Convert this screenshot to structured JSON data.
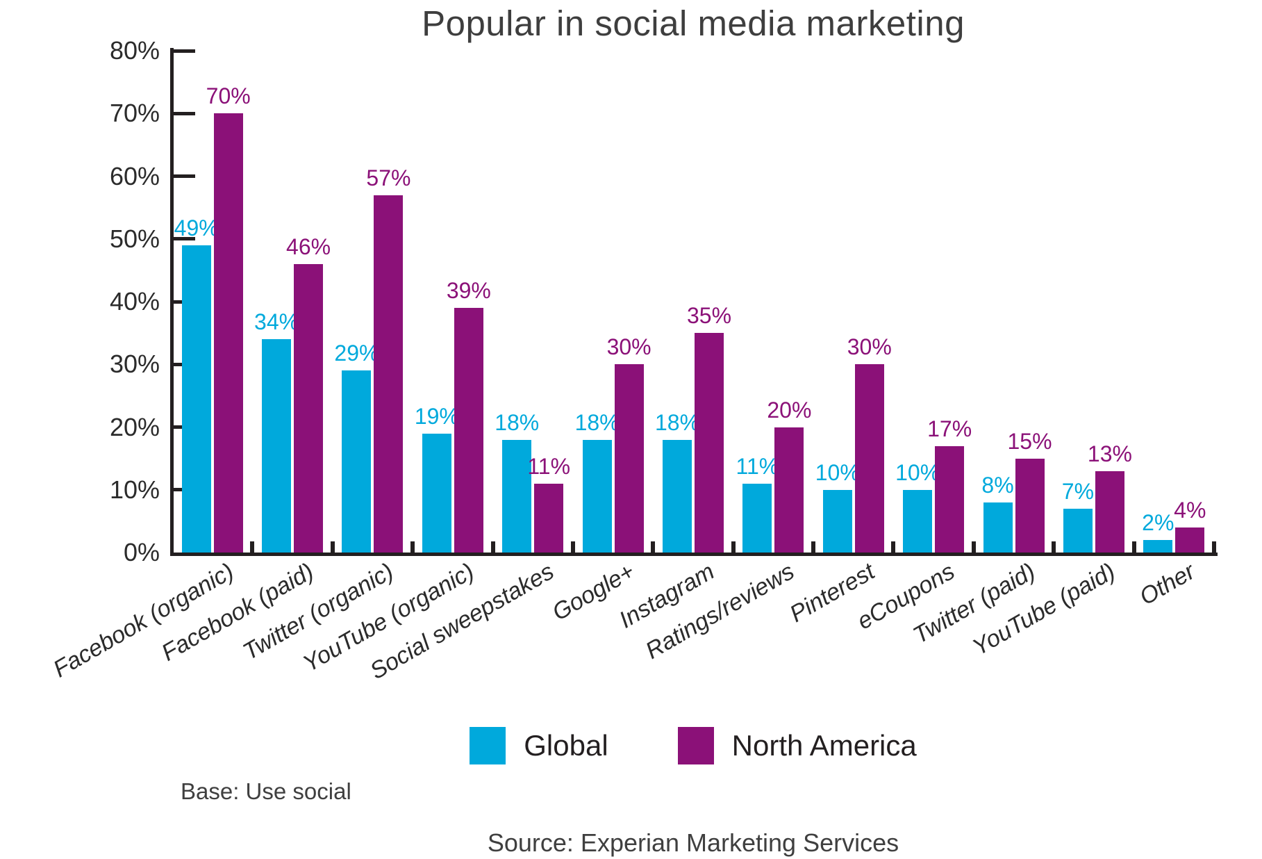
{
  "chart_data": {
    "type": "bar",
    "title": "Popular in social media marketing",
    "categories": [
      "Facebook (organic)",
      "Facebook (paid)",
      "Twitter (organic)",
      "YouTube (organic)",
      "Social sweepstakes",
      "Google+",
      "Instagram",
      "Ratings/reviews",
      "Pinterest",
      "eCoupons",
      "Twitter (paid)",
      "YouTube (paid)",
      "Other"
    ],
    "series": [
      {
        "name": "Global",
        "color": "#00a9dc",
        "values": [
          49,
          34,
          29,
          19,
          18,
          18,
          18,
          11,
          10,
          10,
          8,
          7,
          2
        ]
      },
      {
        "name": "North America",
        "color": "#8b1178",
        "values": [
          70,
          46,
          57,
          39,
          11,
          30,
          35,
          20,
          30,
          17,
          15,
          13,
          4
        ]
      }
    ],
    "value_suffix": "%",
    "ylim": [
      0,
      80
    ],
    "y_tick_labels": [
      "0%",
      "10%",
      "20%",
      "30%",
      "40%",
      "50%",
      "60%",
      "70%",
      "80%"
    ],
    "grid": false,
    "legend_position": "bottom",
    "xlabel": "",
    "ylabel": ""
  },
  "notes": {
    "base": "Base: Use social",
    "source": "Source: Experian Marketing Services"
  },
  "colors": {
    "axis": "#231f20",
    "title_text": "#3e3e3e",
    "tick_text": "#2b2b2b"
  }
}
